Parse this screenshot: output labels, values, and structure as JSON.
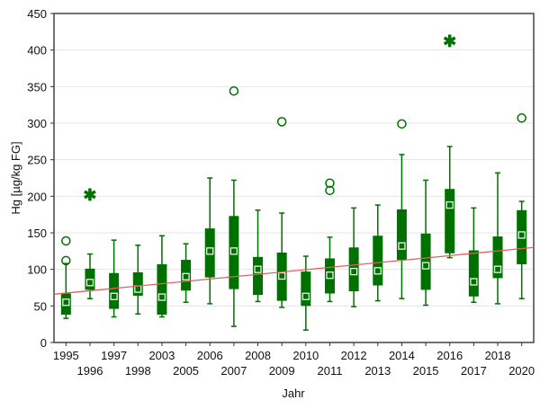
{
  "chart_data": {
    "type": "boxplot",
    "xlabel": "Jahr",
    "ylabel": "Hg [µg/kg FG]",
    "ylim": [
      0,
      450
    ],
    "yticks": [
      0,
      50,
      100,
      150,
      200,
      250,
      300,
      350,
      400,
      450
    ],
    "grid": true,
    "colors": {
      "box": "#007000",
      "trend": "#e06060",
      "grid": "#e6e6e6"
    },
    "categories": [
      "1995",
      "1996",
      "1997",
      "1998",
      "2003",
      "2005",
      "2006",
      "2007",
      "2008",
      "2009",
      "2010",
      "2011",
      "2012",
      "2013",
      "2014",
      "2015",
      "2016",
      "2017",
      "2018",
      "2020"
    ],
    "boxes": [
      {
        "min": 33,
        "q1": 38,
        "median": 55,
        "q3": 67,
        "max": 108,
        "outliers": [
          112,
          139
        ],
        "extremes": []
      },
      {
        "min": 60,
        "q1": 72,
        "median": 82,
        "q3": 101,
        "max": 121,
        "outliers": [],
        "extremes": [
          203
        ]
      },
      {
        "min": 35,
        "q1": 46,
        "median": 63,
        "q3": 95,
        "max": 140,
        "outliers": [],
        "extremes": []
      },
      {
        "min": 39,
        "q1": 64,
        "median": 73,
        "q3": 96,
        "max": 133,
        "outliers": [],
        "extremes": []
      },
      {
        "min": 35,
        "q1": 38,
        "median": 62,
        "q3": 107,
        "max": 146,
        "outliers": [],
        "extremes": []
      },
      {
        "min": 55,
        "q1": 71,
        "median": 90,
        "q3": 113,
        "max": 135,
        "outliers": [],
        "extremes": []
      },
      {
        "min": 53,
        "q1": 89,
        "median": 125,
        "q3": 156,
        "max": 225,
        "outliers": [],
        "extremes": []
      },
      {
        "min": 22,
        "q1": 73,
        "median": 125,
        "q3": 173,
        "max": 222,
        "outliers": [
          344
        ],
        "extremes": []
      },
      {
        "min": 56,
        "q1": 65,
        "median": 100,
        "q3": 117,
        "max": 181,
        "outliers": [],
        "extremes": []
      },
      {
        "min": 48,
        "q1": 57,
        "median": 91,
        "q3": 123,
        "max": 177,
        "outliers": [
          302
        ],
        "extremes": []
      },
      {
        "min": 17,
        "q1": 50,
        "median": 63,
        "q3": 97,
        "max": 118,
        "outliers": [],
        "extremes": []
      },
      {
        "min": 56,
        "q1": 67,
        "median": 92,
        "q3": 115,
        "max": 144,
        "outliers": [
          208,
          218
        ],
        "extremes": []
      },
      {
        "min": 49,
        "q1": 70,
        "median": 97,
        "q3": 130,
        "max": 184,
        "outliers": [],
        "extremes": []
      },
      {
        "min": 57,
        "q1": 78,
        "median": 98,
        "q3": 146,
        "max": 188,
        "outliers": [],
        "extremes": []
      },
      {
        "min": 60,
        "q1": 113,
        "median": 132,
        "q3": 182,
        "max": 257,
        "outliers": [
          299
        ],
        "extremes": []
      },
      {
        "min": 51,
        "q1": 72,
        "median": 105,
        "q3": 149,
        "max": 222,
        "outliers": [],
        "extremes": []
      },
      {
        "min": 116,
        "q1": 122,
        "median": 188,
        "q3": 210,
        "max": 268,
        "outliers": [],
        "extremes": [
          413
        ]
      },
      {
        "min": 55,
        "q1": 63,
        "median": 83,
        "q3": 126,
        "max": 184,
        "outliers": [],
        "extremes": []
      },
      {
        "min": 53,
        "q1": 88,
        "median": 100,
        "q3": 145,
        "max": 232,
        "outliers": [],
        "extremes": []
      },
      {
        "min": 60,
        "q1": 107,
        "median": 147,
        "q3": 181,
        "max": 193,
        "outliers": [
          307
        ],
        "extremes": []
      }
    ],
    "trend_line": {
      "start": 66,
      "end": 130
    }
  }
}
